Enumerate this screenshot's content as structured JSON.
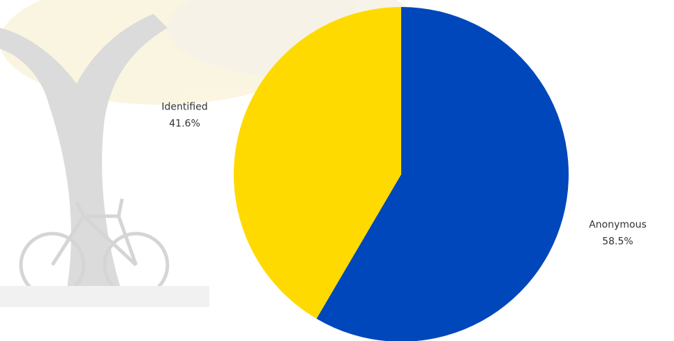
{
  "chart_data": {
    "type": "pie",
    "categories": [
      "Anonymous",
      "Identified"
    ],
    "values": [
      58.5,
      41.6
    ],
    "value_labels": [
      "58.5%",
      "41.6%"
    ],
    "colors": [
      "#0047bb",
      "#ffda00"
    ]
  }
}
